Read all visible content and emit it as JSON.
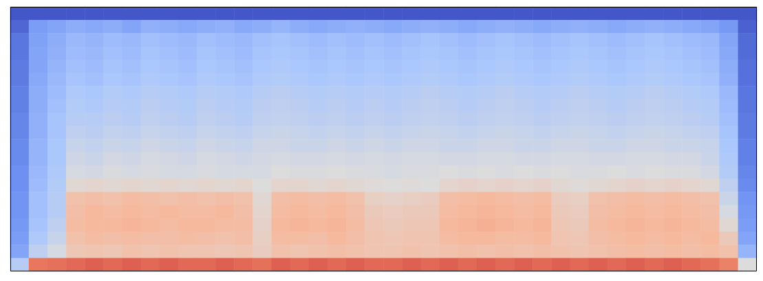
{
  "chart_data": {
    "type": "heatmap",
    "tick_labels": false,
    "color_range": [
      -80,
      0
    ],
    "z": [
      [
        -78,
        -78,
        -78,
        -78,
        -78,
        -78,
        -78,
        -78,
        -78,
        -78,
        -78,
        -78,
        -78,
        -78,
        -78,
        -78,
        -78,
        -78,
        -78,
        -78,
        -78,
        -78,
        -78,
        -78,
        -78,
        -78,
        -78,
        -78,
        -78,
        -78,
        -78,
        -78,
        -78,
        -78,
        -78,
        -78,
        -78,
        -78,
        -78,
        -78
      ],
      [
        -75,
        -64,
        -62,
        -60,
        -61,
        -60,
        -62,
        -59,
        -60,
        -61,
        -60,
        -59,
        -61,
        -60,
        -58,
        -60,
        -61,
        -60,
        -59,
        -60,
        -61,
        -60,
        -59,
        -60,
        -61,
        -60,
        -59,
        -60,
        -61,
        -60,
        -59,
        -60,
        -61,
        -60,
        -59,
        -60,
        -61,
        -62,
        -65,
        -76
      ],
      [
        -72,
        -63,
        -60,
        -57,
        -58,
        -56,
        -57,
        -55,
        -56,
        -57,
        -55,
        -56,
        -57,
        -55,
        -54,
        -55,
        -56,
        -55,
        -56,
        -55,
        -56,
        -55,
        -54,
        -55,
        -56,
        -55,
        -54,
        -55,
        -56,
        -55,
        -54,
        -55,
        -56,
        -55,
        -54,
        -55,
        -56,
        -57,
        -62,
        -74
      ],
      [
        -72,
        -62,
        -59,
        -56,
        -57,
        -55,
        -56,
        -54,
        -55,
        -56,
        -54,
        -55,
        -56,
        -54,
        -53,
        -54,
        -55,
        -54,
        -55,
        -54,
        -55,
        -54,
        -53,
        -54,
        -55,
        -54,
        -53,
        -54,
        -55,
        -54,
        -53,
        -54,
        -55,
        -54,
        -53,
        -54,
        -55,
        -56,
        -61,
        -74
      ],
      [
        -71,
        -62,
        -58,
        -55,
        -56,
        -54,
        -55,
        -53,
        -54,
        -55,
        -53,
        -54,
        -55,
        -53,
        -52,
        -53,
        -54,
        -53,
        -54,
        -53,
        -54,
        -53,
        -52,
        -53,
        -54,
        -53,
        -52,
        -53,
        -54,
        -53,
        -52,
        -53,
        -54,
        -53,
        -52,
        -53,
        -54,
        -55,
        -60,
        -73
      ],
      [
        -71,
        -61,
        -57,
        -54,
        -55,
        -53,
        -54,
        -52,
        -53,
        -54,
        -52,
        -53,
        -54,
        -52,
        -51,
        -52,
        -53,
        -52,
        -53,
        -52,
        -53,
        -52,
        -51,
        -52,
        -53,
        -52,
        -51,
        -52,
        -53,
        -52,
        -51,
        -52,
        -53,
        -52,
        -51,
        -52,
        -53,
        -54,
        -59,
        -73
      ],
      [
        -70,
        -60,
        -56,
        -52,
        -53,
        -51,
        -52,
        -50,
        -51,
        -52,
        -50,
        -51,
        -52,
        -50,
        -49,
        -50,
        -51,
        -50,
        -51,
        -50,
        -51,
        -50,
        -49,
        -50,
        -51,
        -50,
        -49,
        -50,
        -51,
        -50,
        -49,
        -50,
        -51,
        -50,
        -49,
        -50,
        -51,
        -52,
        -57,
        -72
      ],
      [
        -70,
        -60,
        -55,
        -51,
        -52,
        -50,
        -51,
        -49,
        -50,
        -51,
        -49,
        -50,
        -51,
        -49,
        -48,
        -49,
        -50,
        -49,
        -50,
        -49,
        -50,
        -49,
        -48,
        -49,
        -50,
        -49,
        -48,
        -49,
        -50,
        -49,
        -48,
        -49,
        -50,
        -49,
        -48,
        -49,
        -50,
        -51,
        -56,
        -72
      ],
      [
        -69,
        -59,
        -54,
        -50,
        -50,
        -49,
        -50,
        -48,
        -49,
        -50,
        -48,
        -49,
        -50,
        -48,
        -47,
        -48,
        -49,
        -48,
        -49,
        -48,
        -49,
        -48,
        -47,
        -48,
        -49,
        -48,
        -47,
        -48,
        -49,
        -48,
        -47,
        -48,
        -49,
        -48,
        -47,
        -48,
        -49,
        -50,
        -55,
        -71
      ],
      [
        -69,
        -59,
        -54,
        -48,
        -49,
        -47,
        -48,
        -46,
        -47,
        -48,
        -46,
        -47,
        -48,
        -46,
        -45,
        -46,
        -47,
        -46,
        -47,
        -46,
        -47,
        -46,
        -45,
        -46,
        -47,
        -46,
        -45,
        -46,
        -47,
        -46,
        -45,
        -46,
        -47,
        -46,
        -45,
        -46,
        -47,
        -48,
        -54,
        -71
      ],
      [
        -68,
        -58,
        -53,
        -46,
        -47,
        -45,
        -46,
        -44,
        -45,
        -46,
        -44,
        -45,
        -46,
        -44,
        -44,
        -45,
        -45,
        -44,
        -45,
        -44,
        -45,
        -44,
        -44,
        -45,
        -45,
        -44,
        -44,
        -45,
        -45,
        -44,
        -44,
        -45,
        -45,
        -44,
        -44,
        -45,
        -45,
        -46,
        -53,
        -70
      ],
      [
        -68,
        -58,
        -53,
        -44,
        -45,
        -43,
        -44,
        -42,
        -43,
        -44,
        -42,
        -43,
        -44,
        -43,
        -42,
        -43,
        -43,
        -42,
        -43,
        -42,
        -43,
        -42,
        -42,
        -43,
        -43,
        -42,
        -42,
        -43,
        -43,
        -42,
        -42,
        -43,
        -43,
        -42,
        -42,
        -43,
        -43,
        -45,
        -52,
        -70
      ],
      [
        -67,
        -57,
        -52,
        -42,
        -43,
        -41,
        -42,
        -41,
        -42,
        -42,
        -41,
        -42,
        -42,
        -42,
        -40,
        -41,
        -41,
        -40,
        -41,
        -41,
        -42,
        -41,
        -41,
        -40,
        -41,
        -40,
        -41,
        -40,
        -41,
        -40,
        -41,
        -41,
        -40,
        -41,
        -40,
        -41,
        -41,
        -43,
        -51,
        -69
      ],
      [
        -67,
        -56,
        -51,
        -38,
        -37,
        -38,
        -37,
        -38,
        -37,
        -38,
        -37,
        -38,
        -37,
        -40,
        -37,
        -37,
        -38,
        -37,
        -38,
        -39,
        -40,
        -39,
        -40,
        -37,
        -36,
        -37,
        -36,
        -37,
        -36,
        -38,
        -39,
        -38,
        -37,
        -36,
        -37,
        -36,
        -37,
        -38,
        -48,
        -68
      ],
      [
        -66,
        -55,
        -50,
        -30,
        -29,
        -30,
        -28,
        -29,
        -30,
        -29,
        -30,
        -29,
        -30,
        -38,
        -29,
        -28,
        -29,
        -28,
        -30,
        -35,
        -36,
        -35,
        -34,
        -29,
        -28,
        -27,
        -28,
        -29,
        -28,
        -34,
        -35,
        -30,
        -29,
        -28,
        -29,
        -28,
        -29,
        -30,
        -45,
        -66
      ],
      [
        -66,
        -55,
        -50,
        -29,
        -27,
        -28,
        -27,
        -28,
        -27,
        -28,
        -28,
        -27,
        -29,
        -37,
        -28,
        -27,
        -28,
        -27,
        -29,
        -33,
        -34,
        -33,
        -33,
        -28,
        -27,
        -26,
        -27,
        -28,
        -27,
        -33,
        -34,
        -29,
        -28,
        -27,
        -28,
        -27,
        -28,
        -29,
        -42,
        -65
      ],
      [
        -65,
        -54,
        -48,
        -28,
        -27,
        -27,
        -26,
        -27,
        -28,
        -27,
        -27,
        -28,
        -28,
        -36,
        -27,
        -26,
        -27,
        -26,
        -28,
        -32,
        -33,
        -32,
        -32,
        -27,
        -26,
        -25,
        -26,
        -27,
        -26,
        -32,
        -33,
        -28,
        -27,
        -26,
        -27,
        -26,
        -27,
        -28,
        -38,
        -64
      ],
      [
        -64,
        -52,
        -46,
        -30,
        -28,
        -29,
        -28,
        -29,
        -29,
        -28,
        -29,
        -30,
        -29,
        -35,
        -28,
        -28,
        -29,
        -27,
        -29,
        -31,
        -32,
        -31,
        -31,
        -28,
        -27,
        -27,
        -28,
        -28,
        -27,
        -31,
        -32,
        -29,
        -28,
        -27,
        -28,
        -27,
        -28,
        -27,
        -33,
        -62
      ],
      [
        -62,
        -48,
        -42,
        -32,
        -31,
        -32,
        -30,
        -31,
        -30,
        -31,
        -31,
        -32,
        -31,
        -34,
        -30,
        -31,
        -30,
        -29,
        -30,
        -31,
        -31,
        -30,
        -31,
        -30,
        -29,
        -30,
        -29,
        -30,
        -29,
        -30,
        -31,
        -30,
        -29,
        -28,
        -29,
        -28,
        -29,
        -28,
        -30,
        -58
      ],
      [
        -50,
        -14,
        -13,
        -12,
        -11,
        -12,
        -11,
        -12,
        -11,
        -12,
        -12,
        -11,
        -12,
        -13,
        -11,
        -12,
        -11,
        -12,
        -11,
        -12,
        -12,
        -11,
        -12,
        -11,
        -12,
        -11,
        -12,
        -11,
        -12,
        -11,
        -12,
        -11,
        -12,
        -11,
        -12,
        -11,
        -12,
        -13,
        -16,
        -40
      ]
    ]
  }
}
